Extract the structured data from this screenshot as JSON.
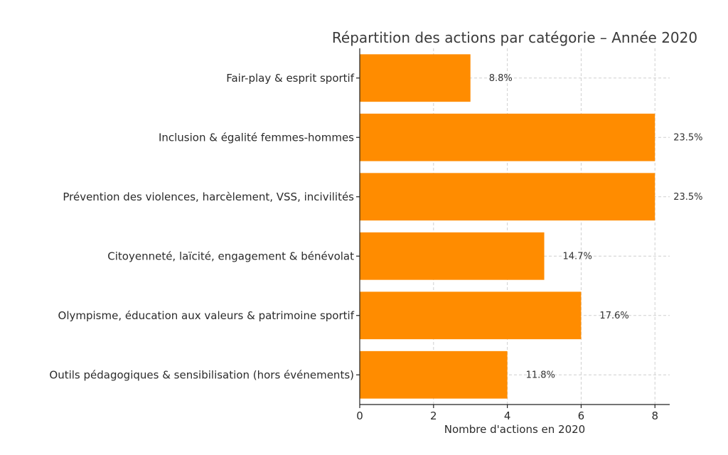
{
  "chart_data": {
    "type": "bar",
    "orientation": "horizontal",
    "title": "Répartition des actions par catégorie – Année 2020",
    "xlabel": "Nombre d'actions en 2020",
    "ylabel": "",
    "xlim": [
      0,
      8.4
    ],
    "xticks": [
      "0",
      "2",
      "4",
      "6",
      "8"
    ],
    "grid": true,
    "bar_color": "#ff8c00",
    "categories": [
      "Fair-play & esprit sportif",
      "Inclusion & égalité femmes-hommes",
      "Prévention des violences, harcèlement, VSS, incivilités",
      "Citoyenneté, laïcité, engagement & bénévolat",
      "Olympisme, éducation aux valeurs & patrimoine sportif",
      "Outils pédagogiques & sensibilisation (hors événements)"
    ],
    "values": [
      3,
      8,
      8,
      5,
      6,
      4
    ],
    "data_labels": [
      "8.8%",
      "23.5%",
      "23.5%",
      "14.7%",
      "17.6%",
      "11.8%"
    ]
  }
}
